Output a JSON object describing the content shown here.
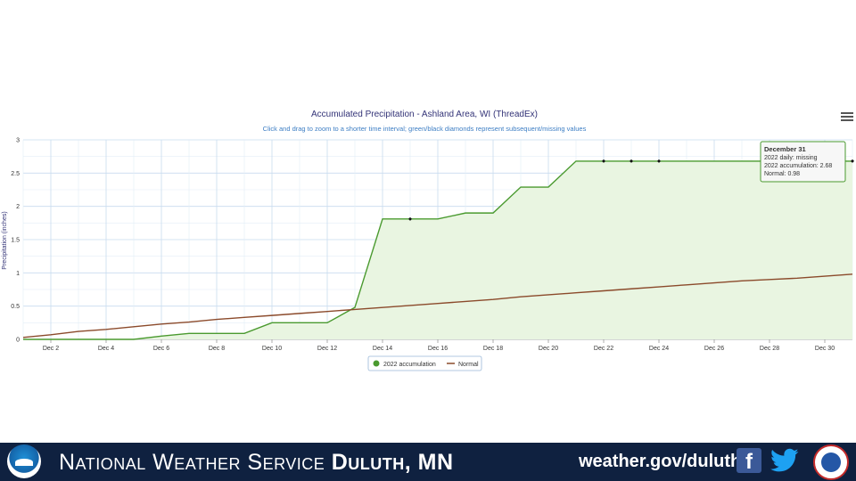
{
  "chart_data": {
    "type": "area",
    "title": "Accumulated Precipitation - Ashland Area, WI (ThreadEx)",
    "subtitle": "Click and drag to zoom to a shorter time interval; green/black diamonds represent subsequent/missing values",
    "ylabel": "Precipitation (inches)",
    "xlabel": "",
    "x_tick_labels": [
      "Dec 2",
      "Dec 4",
      "Dec 6",
      "Dec 8",
      "Dec 10",
      "Dec 12",
      "Dec 14",
      "Dec 16",
      "Dec 18",
      "Dec 20",
      "Dec 22",
      "Dec 24",
      "Dec 26",
      "Dec 28",
      "Dec 30"
    ],
    "y_tick_labels": [
      "0",
      "0.5",
      "1",
      "1.5",
      "2",
      "2.5",
      "3"
    ],
    "ylim": [
      0,
      3
    ],
    "xlim": [
      1,
      31
    ],
    "grid": true,
    "legend_position": "bottom-center",
    "series": [
      {
        "name": "2022 accumulation",
        "color": "#4a9a2f",
        "x": [
          1,
          2,
          3,
          4,
          5,
          6,
          7,
          8,
          9,
          10,
          11,
          12,
          13,
          14,
          15,
          16,
          17,
          18,
          19,
          20,
          21,
          22,
          23,
          24,
          25,
          26,
          27,
          28,
          29,
          30,
          31
        ],
        "values": [
          0,
          0,
          0,
          0,
          0,
          0.05,
          0.09,
          0.09,
          0.09,
          0.25,
          0.25,
          0.25,
          0.48,
          1.81,
          1.81,
          1.81,
          1.9,
          1.9,
          2.29,
          2.29,
          2.68,
          2.68,
          2.68,
          2.68,
          2.68,
          2.68,
          2.68,
          2.68,
          2.68,
          2.68,
          2.68
        ]
      },
      {
        "name": "Normal",
        "color": "#8b4a2b",
        "x": [
          1,
          2,
          3,
          4,
          5,
          6,
          7,
          8,
          9,
          10,
          11,
          12,
          13,
          14,
          15,
          16,
          17,
          18,
          19,
          20,
          21,
          22,
          23,
          24,
          25,
          26,
          27,
          28,
          29,
          30,
          31
        ],
        "values": [
          0.03,
          0.07,
          0.12,
          0.15,
          0.19,
          0.23,
          0.26,
          0.3,
          0.33,
          0.36,
          0.39,
          0.42,
          0.45,
          0.48,
          0.51,
          0.54,
          0.57,
          0.6,
          0.64,
          0.67,
          0.7,
          0.73,
          0.76,
          0.79,
          0.82,
          0.85,
          0.88,
          0.9,
          0.92,
          0.95,
          0.98
        ]
      }
    ],
    "missing_markers_x": [
      15,
      22,
      23,
      24,
      31
    ],
    "tooltip": {
      "title": "December 31",
      "line1": "2022 daily: missing",
      "line2": "2022 accumulation: 2.68",
      "line3": "Normal: 0.98"
    }
  },
  "footer": {
    "title_regular": "National Weather Service ",
    "title_bold": "Duluth, MN",
    "url": "weather.gov/duluth",
    "noaa_logo_icon": "noaa-logo-icon",
    "facebook_icon": "facebook-icon",
    "facebook_glyph": "f",
    "twitter_icon": "twitter-icon",
    "nws_logo_icon": "nws-logo-icon"
  },
  "colors": {
    "footer_bg": "#0f2140",
    "title": "#333377",
    "subtitle": "#3d7ec4",
    "grid": "#c8dcef",
    "area_fill": "#e9f5e1"
  }
}
